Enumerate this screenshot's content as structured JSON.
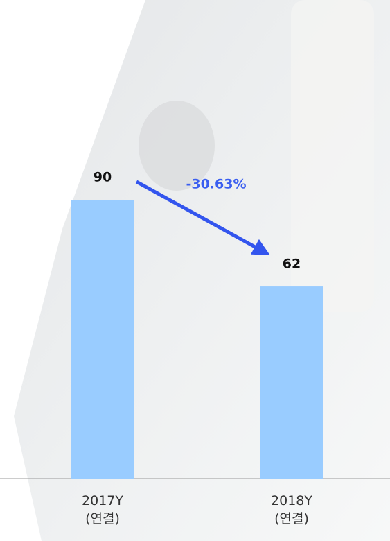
{
  "chart_data": {
    "type": "bar",
    "categories": [
      "2017Y\n(연결)",
      "2018Y\n(연결)"
    ],
    "values": [
      90,
      62
    ],
    "color": "#99ccff",
    "annotations": [
      {
        "text": "-30.63%",
        "color": "#3a5ef0"
      }
    ]
  }
}
